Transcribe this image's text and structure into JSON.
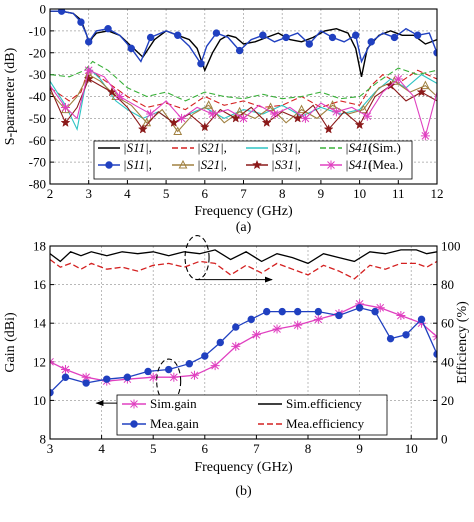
{
  "chart_data": [
    {
      "type": "line",
      "panel_label": "(a)",
      "xlabel": "Frequency (GHz)",
      "ylabel": "S-parameter (dB)",
      "xlim": [
        2,
        12
      ],
      "ylim": [
        -80,
        0
      ],
      "xticks": [
        2,
        3,
        4,
        5,
        6,
        7,
        8,
        9,
        10,
        11,
        12
      ],
      "yticks": [
        0,
        -10,
        -20,
        -30,
        -40,
        -50,
        -60,
        -70,
        -80
      ],
      "grid": true,
      "legend_placement": "bottom",
      "legend_rows": [
        {
          "items": [
            "|S11|,",
            "|S21|,",
            "|S31|,",
            "|S41|"
          ],
          "suffix": "(Sim.)"
        },
        {
          "items": [
            "|S11|,",
            "|S21|,",
            "|S31|,",
            "|S41|"
          ],
          "suffix": "(Mea.)"
        }
      ],
      "series": [
        {
          "id": "s11_sim",
          "color": "#000000",
          "dash": "none",
          "marker": "none",
          "x": [
            2,
            2.3,
            2.6,
            2.8,
            2.95,
            3.0,
            3.1,
            3.2,
            3.5,
            3.8,
            4.1,
            4.4,
            4.7,
            5.0,
            5.3,
            5.6,
            5.8,
            6.0,
            6.2,
            6.4,
            6.6,
            6.8,
            7.0,
            7.3,
            7.6,
            7.9,
            8.2,
            8.5,
            8.8,
            9.1,
            9.4,
            9.7,
            9.9,
            10.05,
            10.2,
            10.5,
            10.8,
            11.1,
            11.4,
            11.7,
            12
          ],
          "y": [
            -1,
            -1,
            -2,
            -5,
            -12,
            -16,
            -13,
            -11,
            -10,
            -12,
            -17,
            -22,
            -14,
            -10,
            -12,
            -14,
            -18,
            -28,
            -20,
            -14,
            -12,
            -13,
            -16,
            -15,
            -13,
            -11,
            -14,
            -15,
            -13,
            -10,
            -9,
            -11,
            -18,
            -31,
            -18,
            -12,
            -10,
            -12,
            -12,
            -16,
            -14
          ]
        },
        {
          "id": "s21_sim",
          "color": "#d42020",
          "dash": "6 3",
          "marker": "none",
          "x": [
            2,
            2.5,
            2.8,
            3.0,
            3.2,
            3.6,
            4.0,
            4.5,
            5.0,
            5.5,
            6.0,
            6.5,
            7.0,
            7.5,
            8.0,
            8.5,
            9.0,
            9.5,
            10.0,
            10.3,
            10.6,
            11.0,
            11.5,
            12
          ],
          "y": [
            -36,
            -42,
            -38,
            -27,
            -30,
            -35,
            -40,
            -45,
            -43,
            -46,
            -40,
            -44,
            -42,
            -45,
            -44,
            -40,
            -45,
            -42,
            -44,
            -35,
            -30,
            -34,
            -28,
            -32
          ]
        },
        {
          "id": "s31_sim",
          "color": "#2ec4c4",
          "dash": "none",
          "marker": "none",
          "x": [
            2,
            2.4,
            2.7,
            3.0,
            3.3,
            3.7,
            4.0,
            4.4,
            4.8,
            5.2,
            5.6,
            6.0,
            6.5,
            7.0,
            7.5,
            8.0,
            8.5,
            9.0,
            9.5,
            10.0,
            10.4,
            10.8,
            11.2,
            11.6,
            12
          ],
          "y": [
            -33,
            -44,
            -55,
            -27,
            -32,
            -42,
            -46,
            -50,
            -47,
            -52,
            -48,
            -45,
            -50,
            -46,
            -48,
            -44,
            -49,
            -45,
            -48,
            -46,
            -38,
            -32,
            -36,
            -30,
            -34
          ]
        },
        {
          "id": "s41_sim",
          "color": "#38b038",
          "dash": "6 3",
          "marker": "none",
          "x": [
            2,
            2.5,
            2.9,
            3.1,
            3.5,
            4.0,
            4.5,
            5.0,
            5.5,
            6.0,
            6.5,
            7.0,
            7.5,
            8.0,
            8.5,
            9.0,
            9.5,
            10.0,
            10.5,
            11.0,
            11.5,
            12
          ],
          "y": [
            -30,
            -31,
            -28,
            -24,
            -28,
            -36,
            -40,
            -38,
            -42,
            -38,
            -40,
            -41,
            -39,
            -41,
            -40,
            -38,
            -41,
            -40,
            -33,
            -27,
            -30,
            -28
          ]
        },
        {
          "id": "s11_mea",
          "color": "#2040c0",
          "dash": "none",
          "marker": "circle",
          "x": [
            2,
            2.3,
            2.6,
            2.8,
            2.95,
            3.0,
            3.2,
            3.5,
            3.8,
            4.1,
            4.35,
            4.6,
            5.0,
            5.3,
            5.6,
            5.9,
            6.05,
            6.3,
            6.6,
            6.9,
            7.2,
            7.5,
            7.8,
            8.1,
            8.4,
            8.7,
            9.0,
            9.3,
            9.6,
            9.9,
            10.05,
            10.3,
            10.6,
            10.9,
            11.2,
            11.5,
            11.8,
            12
          ],
          "y": [
            -1,
            -1,
            -2,
            -6,
            -12,
            -15,
            -10,
            -9,
            -12,
            -18,
            -24,
            -13,
            -10,
            -12,
            -17,
            -25,
            -17,
            -11,
            -13,
            -19,
            -14,
            -12,
            -15,
            -13,
            -11,
            -16,
            -10,
            -13,
            -15,
            -12,
            -24,
            -15,
            -11,
            -13,
            -9,
            -12,
            -11,
            -20
          ]
        },
        {
          "id": "s21_mea",
          "color": "#a08040",
          "dash": "none",
          "marker": "triangle",
          "x": [
            2,
            2.4,
            2.7,
            3.0,
            3.3,
            3.7,
            4.1,
            4.5,
            4.9,
            5.3,
            5.7,
            6.1,
            6.5,
            6.9,
            7.3,
            7.7,
            8.1,
            8.5,
            8.9,
            9.3,
            9.7,
            10.1,
            10.5,
            10.9,
            11.3,
            11.7,
            12
          ],
          "y": [
            -38,
            -46,
            -40,
            -30,
            -33,
            -40,
            -44,
            -52,
            -46,
            -56,
            -48,
            -44,
            -52,
            -47,
            -50,
            -45,
            -52,
            -46,
            -50,
            -44,
            -48,
            -46,
            -36,
            -33,
            -38,
            -35,
            -40
          ]
        },
        {
          "id": "s31_mea",
          "color": "#8b1a1a",
          "dash": "none",
          "marker": "star",
          "x": [
            2,
            2.4,
            2.7,
            3.0,
            3.3,
            3.6,
            4.0,
            4.4,
            4.8,
            5.2,
            5.6,
            6.0,
            6.4,
            6.8,
            7.2,
            7.6,
            8.0,
            8.4,
            8.8,
            9.2,
            9.6,
            10.0,
            10.4,
            10.8,
            11.2,
            11.6,
            12
          ],
          "y": [
            -36,
            -52,
            -45,
            -32,
            -35,
            -38,
            -45,
            -55,
            -47,
            -52,
            -48,
            -54,
            -46,
            -50,
            -45,
            -52,
            -47,
            -50,
            -44,
            -55,
            -47,
            -53,
            -40,
            -35,
            -42,
            -38,
            -42
          ]
        },
        {
          "id": "s41_mea",
          "color": "#e040c0",
          "dash": "none",
          "marker": "x",
          "x": [
            2,
            2.4,
            2.7,
            3.0,
            3.4,
            3.8,
            4.2,
            4.6,
            5.0,
            5.4,
            5.8,
            6.2,
            6.6,
            7.0,
            7.4,
            7.8,
            8.2,
            8.6,
            9.0,
            9.4,
            9.8,
            10.2,
            10.6,
            11.0,
            11.4,
            11.7,
            12
          ],
          "y": [
            -35,
            -45,
            -50,
            -28,
            -31,
            -40,
            -44,
            -48,
            -42,
            -50,
            -45,
            -48,
            -46,
            -50,
            -44,
            -48,
            -45,
            -50,
            -43,
            -47,
            -45,
            -49,
            -38,
            -32,
            -40,
            -58,
            -38
          ]
        }
      ]
    },
    {
      "type": "line",
      "panel_label": "(b)",
      "xlabel": "Frequency (GHz)",
      "ylabel": "Gain (dBi)",
      "y2label": "Efficiency (%)",
      "xlim": [
        3,
        10.5
      ],
      "ylim": [
        8,
        18
      ],
      "y2lim": [
        0,
        100
      ],
      "xticks": [
        3,
        4,
        5,
        6,
        7,
        8,
        9,
        10
      ],
      "yticks": [
        8,
        10,
        12,
        14,
        16,
        18
      ],
      "y2ticks": [
        0,
        20,
        40,
        60,
        80,
        100
      ],
      "grid": true,
      "legend_placement": "bottom-right",
      "legend_items": [
        "Sim.gain",
        "Sim.efficiency",
        "Mea.gain",
        "Mea.efficiency"
      ],
      "series": [
        {
          "id": "sim_gain",
          "name": "Sim.gain",
          "axis": "left",
          "color": "#e040c0",
          "dash": "none",
          "marker": "x",
          "x": [
            3.0,
            3.3,
            3.7,
            4.1,
            4.5,
            5.0,
            5.4,
            5.8,
            6.2,
            6.6,
            7.0,
            7.4,
            7.8,
            8.2,
            8.6,
            9.0,
            9.4,
            9.8,
            10.2,
            10.5
          ],
          "y": [
            12.0,
            11.6,
            11.2,
            11.0,
            11.1,
            11.2,
            11.2,
            11.3,
            11.8,
            12.8,
            13.4,
            13.7,
            13.9,
            14.2,
            14.5,
            15.0,
            14.8,
            14.4,
            14.0,
            13.3
          ]
        },
        {
          "id": "sim_eff",
          "name": "Sim.efficiency",
          "axis": "right",
          "color": "#000000",
          "dash": "none",
          "marker": "none",
          "x": [
            3.0,
            3.2,
            3.4,
            3.6,
            3.8,
            4.1,
            4.4,
            4.7,
            5.0,
            5.3,
            5.6,
            5.9,
            6.2,
            6.5,
            6.8,
            7.1,
            7.4,
            7.7,
            8.0,
            8.3,
            8.6,
            8.9,
            9.2,
            9.5,
            9.8,
            10.1,
            10.3,
            10.5
          ],
          "y": [
            96,
            92,
            97,
            95,
            97,
            95,
            97,
            96,
            97,
            95,
            97,
            96,
            98,
            93,
            97,
            92,
            96,
            94,
            91,
            96,
            94,
            92,
            97,
            96,
            98,
            98,
            96,
            97
          ]
        },
        {
          "id": "mea_gain",
          "name": "Mea.gain",
          "axis": "left",
          "color": "#2040c0",
          "dash": "none",
          "marker": "circle",
          "x": [
            3.0,
            3.3,
            3.7,
            4.1,
            4.5,
            4.9,
            5.3,
            5.7,
            6.0,
            6.3,
            6.6,
            6.9,
            7.2,
            7.5,
            7.8,
            8.2,
            8.6,
            9.0,
            9.3,
            9.6,
            9.9,
            10.2,
            10.5
          ],
          "y": [
            10.4,
            11.2,
            10.9,
            11.1,
            11.2,
            11.5,
            11.6,
            11.9,
            12.3,
            13.0,
            13.8,
            14.2,
            14.6,
            14.6,
            14.6,
            14.6,
            14.4,
            14.8,
            14.6,
            13.2,
            13.4,
            14.2,
            12.4
          ]
        },
        {
          "id": "mea_eff",
          "name": "Mea.efficiency",
          "axis": "right",
          "color": "#d42020",
          "dash": "6 3",
          "marker": "none",
          "x": [
            3.0,
            3.2,
            3.4,
            3.6,
            3.8,
            4.1,
            4.4,
            4.7,
            5.0,
            5.3,
            5.6,
            5.9,
            6.2,
            6.5,
            6.8,
            7.1,
            7.4,
            7.7,
            8.0,
            8.3,
            8.6,
            8.9,
            9.2,
            9.5,
            9.8,
            10.1,
            10.3,
            10.5
          ],
          "y": [
            93,
            89,
            91,
            88,
            91,
            88,
            89,
            87,
            90,
            91,
            89,
            92,
            91,
            85,
            90,
            86,
            91,
            88,
            85,
            90,
            87,
            83,
            90,
            88,
            91,
            91,
            89,
            92
          ]
        }
      ],
      "annotations": [
        {
          "id": "ellipse_eff",
          "cx": 5.85,
          "cy": 94,
          "axis": "right",
          "arrow_to_x": 7.3,
          "arrow_direction": "right"
        },
        {
          "id": "ellipse_gain",
          "cx": 5.3,
          "cy": 11.0,
          "axis": "left",
          "arrow_to_x": 3.9,
          "arrow_direction": "left"
        }
      ]
    }
  ]
}
